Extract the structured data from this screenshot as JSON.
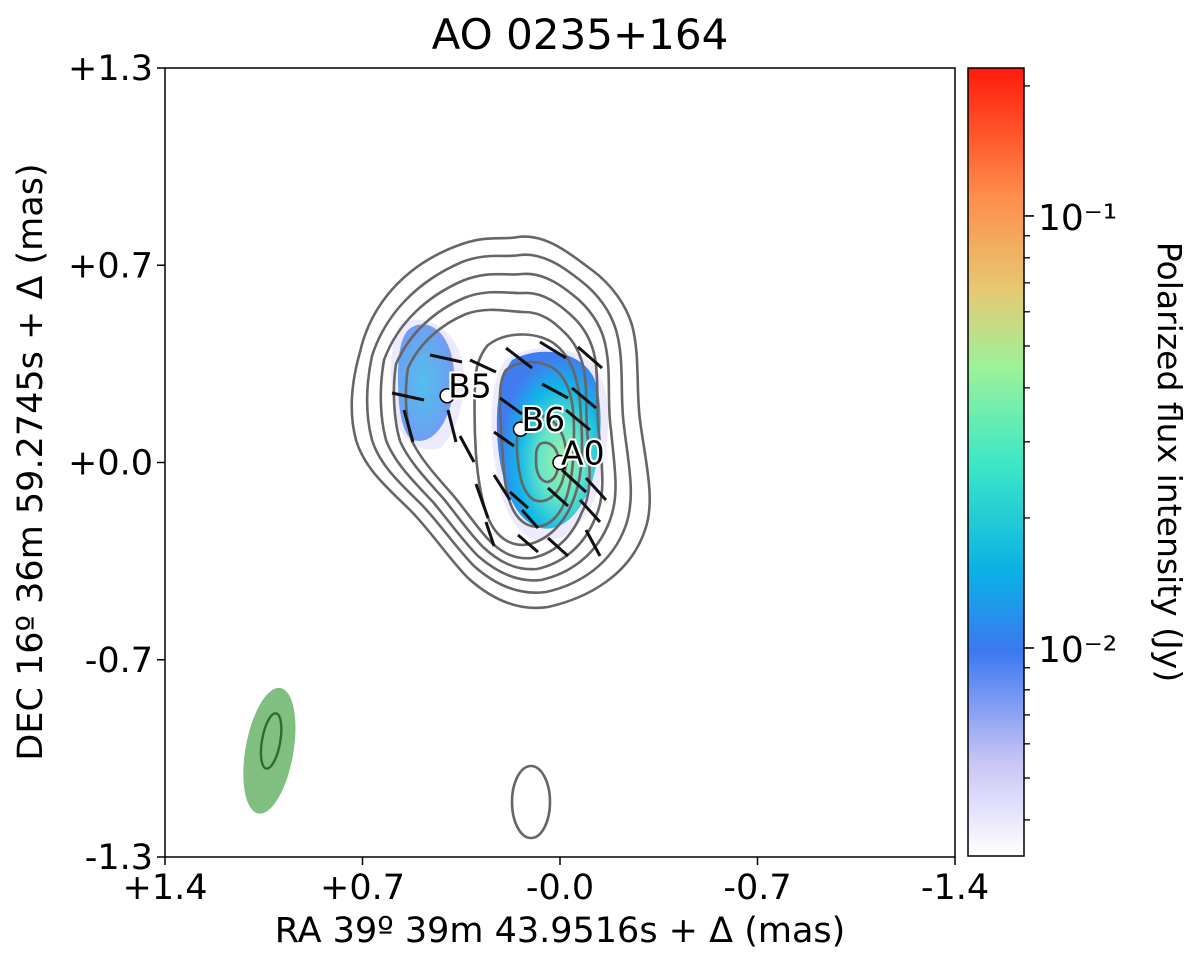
{
  "chart_data": {
    "type": "contour-map",
    "title": "AO 0235+164",
    "xlabel": "RA 39º 39m 43.9516s + Δ (mas)",
    "ylabel": "DEC 16º 36m 59.2745s + Δ (mas)",
    "xlim": [
      1.4,
      -1.4
    ],
    "ylim": [
      -1.3,
      1.3
    ],
    "x_ticks": [
      {
        "value": 1.4,
        "label": "+1.4"
      },
      {
        "value": 0.7,
        "label": "+0.7"
      },
      {
        "value": 0.0,
        "label": "-0.0"
      },
      {
        "value": -0.7,
        "label": "-0.7"
      },
      {
        "value": -1.4,
        "label": "-1.4"
      }
    ],
    "y_ticks": [
      {
        "value": 1.3,
        "label": "+1.3"
      },
      {
        "value": 0.65,
        "label": "+0.7"
      },
      {
        "value": 0.0,
        "label": "+0.0"
      },
      {
        "value": -0.65,
        "label": "-0.7"
      },
      {
        "value": -1.3,
        "label": "-1.3"
      }
    ],
    "colorbar": {
      "label": "Polarized flux intensity (Jy)",
      "scale": "log",
      "range": [
        0.0033,
        0.22
      ],
      "major_ticks": [
        {
          "value": 0.01,
          "label": "10⁻²"
        },
        {
          "value": 0.1,
          "label": "10⁻¹"
        }
      ],
      "minor_ticks": [
        0.004,
        0.005,
        0.006,
        0.007,
        0.008,
        0.009,
        0.02,
        0.03,
        0.04,
        0.05,
        0.06,
        0.07,
        0.08,
        0.09,
        0.2
      ]
    },
    "components": [
      {
        "name": "A0",
        "x": 0.0,
        "y": 0.0
      },
      {
        "name": "B6",
        "x": 0.14,
        "y": 0.11
      },
      {
        "name": "B5",
        "x": 0.4,
        "y": 0.22
      }
    ],
    "beam": {
      "x": 1.03,
      "y": -0.95,
      "major": 0.42,
      "minor": 0.17,
      "pa_deg": 10,
      "color": "#6ab46a"
    },
    "colors": {
      "contour": "#666666",
      "evpa": "#111111"
    }
  }
}
